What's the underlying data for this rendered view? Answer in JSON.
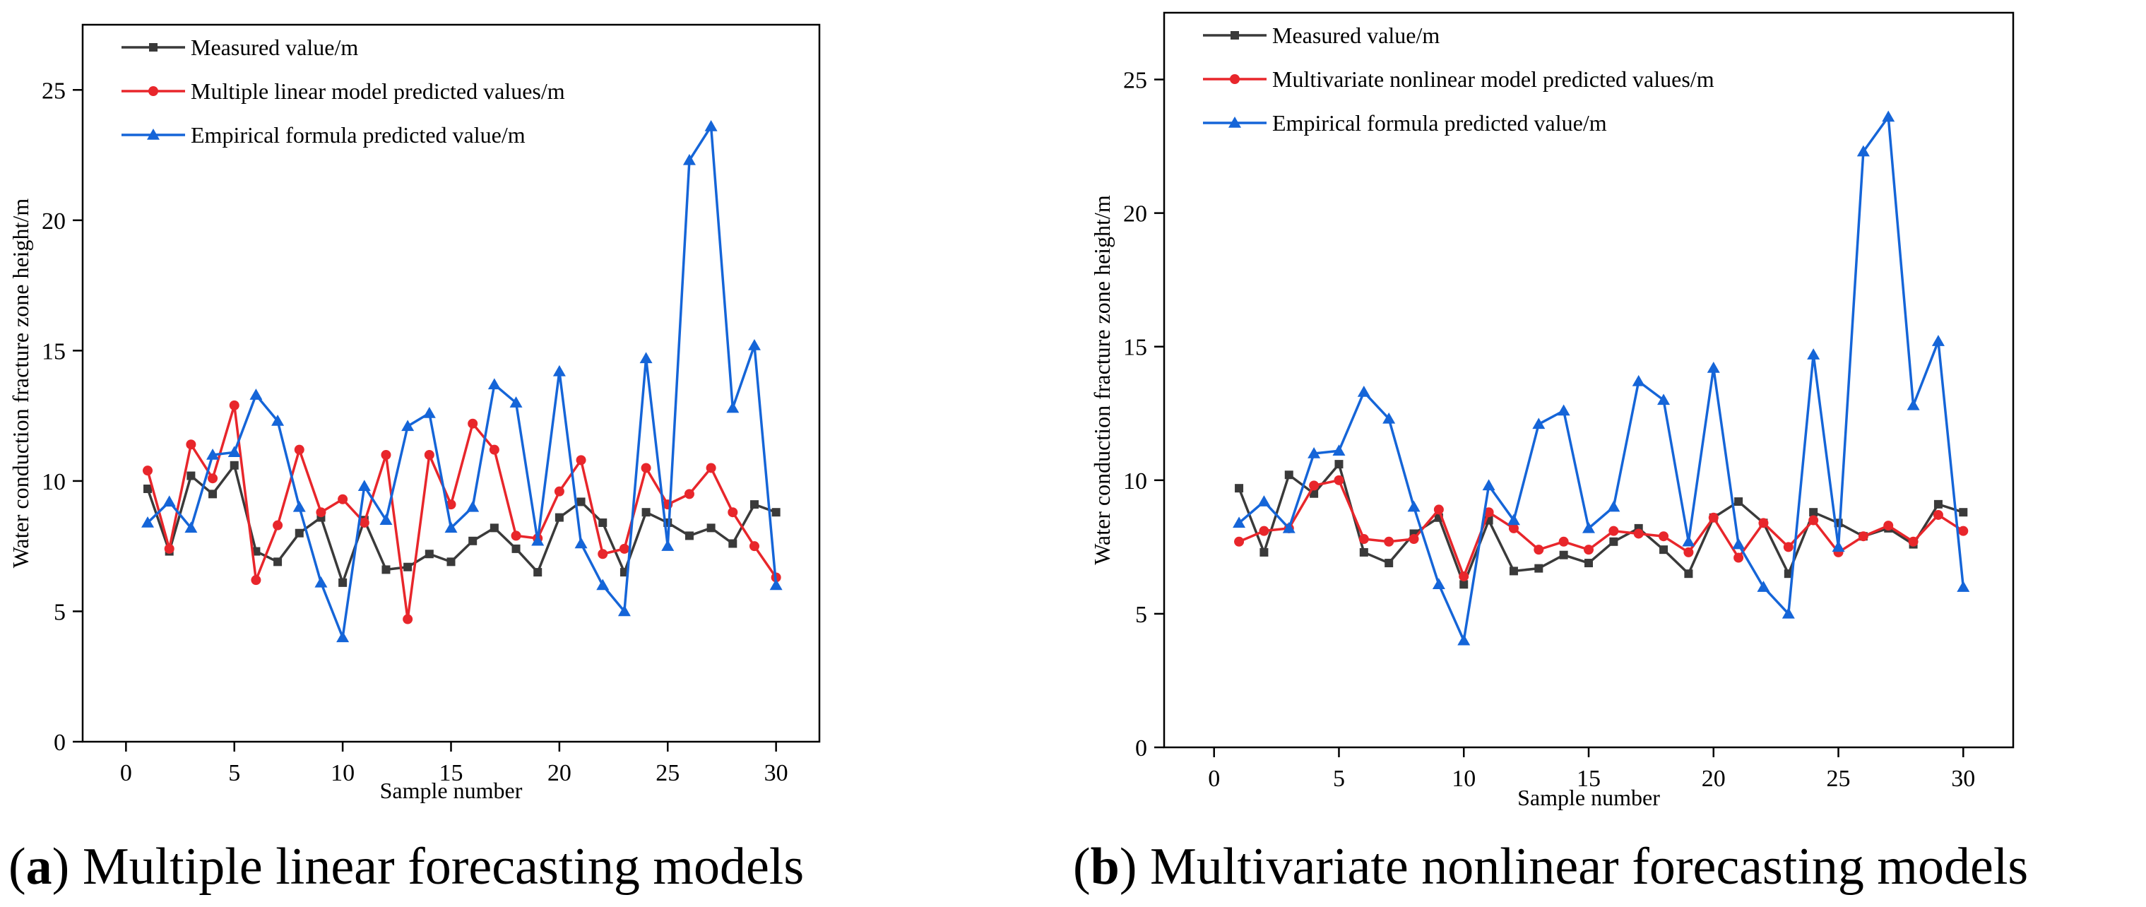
{
  "colors": {
    "measured": "#3a3a3a",
    "nonlinear": "#e8262b",
    "empirical": "#1565d8",
    "axis": "#000000"
  },
  "captions": [
    {
      "label": "a",
      "text": "Multiple linear forecasting models"
    },
    {
      "label": "b",
      "text": "Multivariate nonlinear forecasting models"
    }
  ],
  "chart_data": [
    {
      "type": "line",
      "title": "",
      "xlabel": "Sample number",
      "ylabel": "Water conduction fracture zone height/m",
      "xlim": [
        -2,
        32
      ],
      "ylim": [
        0,
        27.5
      ],
      "xticks": [
        0,
        5,
        10,
        15,
        20,
        25,
        30
      ],
      "yticks": [
        0,
        5,
        10,
        15,
        20,
        25
      ],
      "legend_position": "top-left",
      "x": [
        1,
        2,
        3,
        4,
        5,
        6,
        7,
        8,
        9,
        10,
        11,
        12,
        13,
        14,
        15,
        16,
        17,
        18,
        19,
        20,
        21,
        22,
        23,
        24,
        25,
        26,
        27,
        28,
        29,
        30
      ],
      "series": [
        {
          "name": "Measured value/m",
          "color_key": "measured",
          "marker": "square",
          "values": [
            9.7,
            7.3,
            10.2,
            9.5,
            10.6,
            7.3,
            6.9,
            8.0,
            8.6,
            6.1,
            8.5,
            6.6,
            6.7,
            7.2,
            6.9,
            7.7,
            8.2,
            7.4,
            6.5,
            8.6,
            9.2,
            8.4,
            6.5,
            8.8,
            8.4,
            7.9,
            8.2,
            7.6,
            9.1,
            8.8
          ]
        },
        {
          "name": "Multiple linear model predicted values/m",
          "color_key": "nonlinear",
          "marker": "circle",
          "values": [
            10.4,
            7.4,
            11.4,
            10.1,
            12.9,
            6.2,
            8.3,
            11.2,
            8.8,
            9.3,
            8.4,
            11.0,
            4.7,
            11.0,
            9.1,
            12.2,
            11.2,
            7.9,
            7.8,
            9.6,
            10.8,
            7.2,
            7.4,
            10.5,
            9.1,
            9.5,
            10.5,
            8.8,
            7.5,
            6.3
          ]
        },
        {
          "name": "Empirical formula predicted value/m",
          "color_key": "empirical",
          "marker": "triangle",
          "values": [
            8.4,
            9.2,
            8.2,
            11.0,
            11.1,
            13.3,
            12.3,
            9.0,
            6.1,
            4.0,
            9.8,
            8.5,
            12.1,
            12.6,
            8.2,
            9.0,
            13.7,
            13.0,
            7.7,
            14.2,
            7.6,
            6.0,
            5.0,
            14.7,
            7.5,
            22.3,
            23.6,
            12.8,
            15.2,
            6.0
          ]
        }
      ]
    },
    {
      "type": "line",
      "title": "",
      "xlabel": "Sample number",
      "ylabel": "Water conduction fracture zone height/m",
      "xlim": [
        -2,
        32
      ],
      "ylim": [
        0,
        27.5
      ],
      "xticks": [
        0,
        5,
        10,
        15,
        20,
        25,
        30
      ],
      "yticks": [
        0,
        5,
        10,
        15,
        20,
        25
      ],
      "legend_position": "top-left",
      "x": [
        1,
        2,
        3,
        4,
        5,
        6,
        7,
        8,
        9,
        10,
        11,
        12,
        13,
        14,
        15,
        16,
        17,
        18,
        19,
        20,
        21,
        22,
        23,
        24,
        25,
        26,
        27,
        28,
        29,
        30
      ],
      "series": [
        {
          "name": "Measured value/m",
          "color_key": "measured",
          "marker": "square",
          "values": [
            9.7,
            7.3,
            10.2,
            9.5,
            10.6,
            7.3,
            6.9,
            8.0,
            8.6,
            6.1,
            8.5,
            6.6,
            6.7,
            7.2,
            6.9,
            7.7,
            8.2,
            7.4,
            6.5,
            8.6,
            9.2,
            8.4,
            6.5,
            8.8,
            8.4,
            7.9,
            8.2,
            7.6,
            9.1,
            8.8
          ]
        },
        {
          "name": "Multivariate nonlinear model predicted values/m",
          "color_key": "nonlinear",
          "marker": "circle",
          "values": [
            7.7,
            8.1,
            8.2,
            9.8,
            10.0,
            7.8,
            7.7,
            7.8,
            8.9,
            6.4,
            8.8,
            8.2,
            7.4,
            7.7,
            7.4,
            8.1,
            8.0,
            7.9,
            7.3,
            8.6,
            7.1,
            8.4,
            7.5,
            8.5,
            7.3,
            7.9,
            8.3,
            7.7,
            8.7,
            8.1
          ]
        },
        {
          "name": "Empirical formula predicted value/m",
          "color_key": "empirical",
          "marker": "triangle",
          "values": [
            8.4,
            9.2,
            8.2,
            11.0,
            11.1,
            13.3,
            12.3,
            9.0,
            6.1,
            4.0,
            9.8,
            8.5,
            12.1,
            12.6,
            8.2,
            9.0,
            13.7,
            13.0,
            7.7,
            14.2,
            7.6,
            6.0,
            5.0,
            14.7,
            7.5,
            22.3,
            23.6,
            12.8,
            15.2,
            6.0
          ]
        }
      ]
    }
  ]
}
